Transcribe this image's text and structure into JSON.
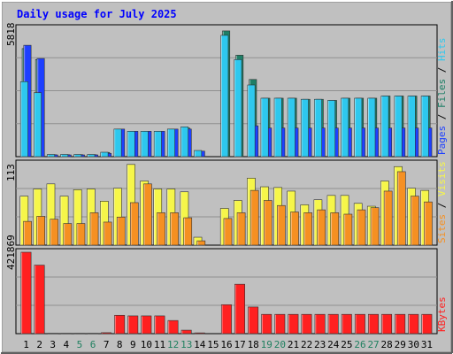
{
  "title": "Daily usage for July 2025",
  "colors": {
    "background": "#c0c0c0",
    "frame": "#8f8f8f",
    "title": "#0000ff",
    "pages": "#1e40ff",
    "hits": "#2ec8ee",
    "files": "#1e7f66",
    "visits": "#f6f64a",
    "sites": "#f59022",
    "kbytes": "#ff2020",
    "weekend": "#208060",
    "weekday": "#000000"
  },
  "chart_data": [
    {
      "type": "bar",
      "title": "Daily usage for July 2025",
      "panel": "hits-files-pages",
      "ymax_label": "5818",
      "ylim": [
        0,
        5818
      ],
      "grid": true,
      "categories": [
        "1",
        "2",
        "3",
        "4",
        "5",
        "6",
        "7",
        "8",
        "9",
        "10",
        "11",
        "12",
        "13",
        "14",
        "15",
        "16",
        "17",
        "18",
        "19",
        "20",
        "21",
        "22",
        "23",
        "24",
        "25",
        "26",
        "27",
        "28",
        "29",
        "30",
        "31"
      ],
      "series": [
        {
          "name": "Hits",
          "values": [
            3400,
            2900,
            100,
            100,
            100,
            100,
            200,
            1250,
            1150,
            1150,
            1150,
            1250,
            1350,
            280,
            0,
            5500,
            4400,
            3250,
            2650,
            2650,
            2650,
            2600,
            2600,
            2550,
            2650,
            2650,
            2650,
            2750,
            2750,
            2750,
            2750
          ]
        },
        {
          "name": "Files",
          "values": [
            4900,
            4400,
            90,
            90,
            90,
            90,
            190,
            1200,
            1100,
            1100,
            1100,
            1200,
            1300,
            250,
            0,
            5700,
            4600,
            3500,
            2650,
            2650,
            2650,
            2600,
            2600,
            2550,
            2650,
            2650,
            2650,
            2750,
            2750,
            2750,
            2750
          ]
        },
        {
          "name": "Pages",
          "values": [
            5050,
            4450,
            80,
            80,
            80,
            80,
            150,
            1250,
            1150,
            1150,
            1150,
            1250,
            1250,
            250,
            0,
            0,
            0,
            1400,
            1300,
            1300,
            1300,
            1300,
            1300,
            1300,
            1300,
            1300,
            1300,
            1300,
            1300,
            1300,
            1300
          ]
        }
      ]
    },
    {
      "type": "bar",
      "panel": "visits-sites",
      "ymax_label": "113",
      "ylim": [
        0,
        113
      ],
      "grid": true,
      "categories": [
        "1",
        "2",
        "3",
        "4",
        "5",
        "6",
        "7",
        "8",
        "9",
        "10",
        "11",
        "12",
        "13",
        "14",
        "15",
        "16",
        "17",
        "18",
        "19",
        "20",
        "21",
        "22",
        "23",
        "24",
        "25",
        "26",
        "27",
        "28",
        "29",
        "30",
        "31"
      ],
      "series": [
        {
          "name": "Visits",
          "values": [
            68,
            78,
            85,
            68,
            77,
            78,
            61,
            79,
            112,
            89,
            78,
            78,
            74,
            11,
            0,
            51,
            62,
            93,
            81,
            80,
            75,
            56,
            63,
            69,
            69,
            58,
            54,
            89,
            109,
            79,
            76
          ]
        },
        {
          "name": "Sites",
          "values": [
            33,
            40,
            36,
            30,
            30,
            45,
            32,
            39,
            59,
            85,
            45,
            45,
            38,
            6,
            0,
            37,
            45,
            76,
            62,
            55,
            46,
            45,
            49,
            45,
            43,
            49,
            52,
            75,
            102,
            68,
            60
          ]
        }
      ]
    },
    {
      "type": "bar",
      "panel": "kbytes",
      "ymax_label": "421869",
      "ylim": [
        0,
        421869
      ],
      "grid": true,
      "categories": [
        "1",
        "2",
        "3",
        "4",
        "5",
        "6",
        "7",
        "8",
        "9",
        "10",
        "11",
        "12",
        "13",
        "14",
        "15",
        "16",
        "17",
        "18",
        "19",
        "20",
        "21",
        "22",
        "23",
        "24",
        "25",
        "26",
        "27",
        "28",
        "29",
        "30",
        "31"
      ],
      "series": [
        {
          "name": "KBytes",
          "values": [
            421869,
            355000,
            2000,
            2000,
            2000,
            2000,
            5000,
            95000,
            92000,
            92000,
            92000,
            68000,
            18000,
            4000,
            0,
            150000,
            256000,
            138000,
            100000,
            100000,
            100000,
            100000,
            100000,
            100000,
            100000,
            100000,
            100000,
            100000,
            100000,
            100000,
            100000
          ]
        }
      ]
    }
  ],
  "legends": {
    "top": [
      "Pages",
      "Files",
      "Hits"
    ],
    "middle": [
      "Sites",
      "Visits"
    ],
    "bottom": [
      "KBytes"
    ]
  },
  "legend_separator": "/",
  "weekend_days": [
    "5",
    "6",
    "12",
    "13",
    "19",
    "20",
    "26",
    "27"
  ]
}
